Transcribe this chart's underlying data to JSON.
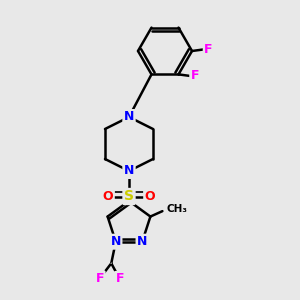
{
  "background_color": "#e8e8e8",
  "bond_color": "#000000",
  "N_color": "#0000ff",
  "S_color": "#cccc00",
  "O_color": "#ff0000",
  "F_color": "#ff00ff",
  "figsize": [
    3.0,
    3.0
  ],
  "dpi": 100,
  "xlim": [
    0,
    10
  ],
  "ylim": [
    0,
    10
  ]
}
